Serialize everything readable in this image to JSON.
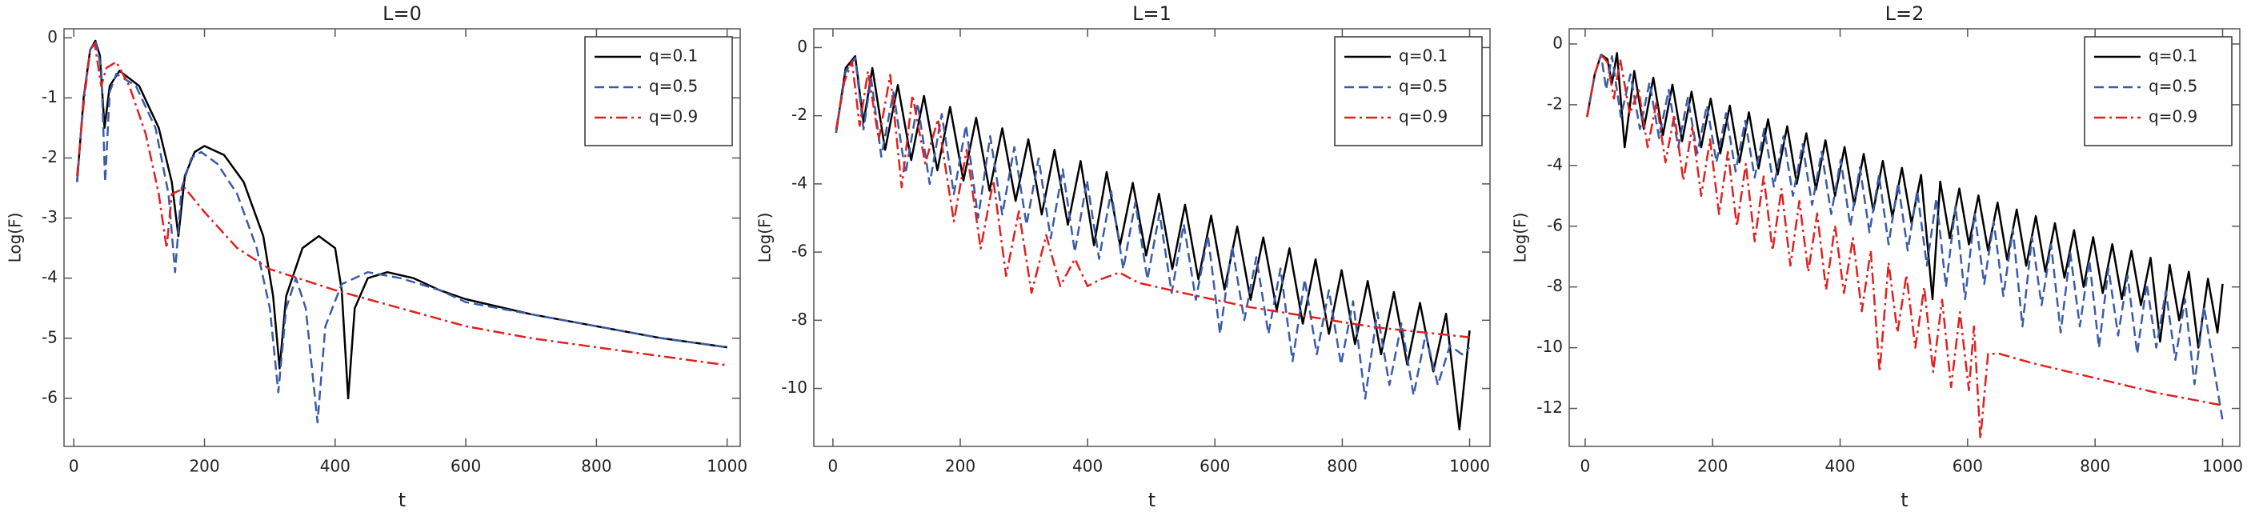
{
  "chart_data": [
    {
      "type": "line",
      "title": "L=0",
      "xlabel": "t",
      "ylabel": "Log(F)",
      "xlim": [
        -15,
        1020
      ],
      "ylim": [
        -6.8,
        0.15
      ],
      "xticks": [
        0,
        200,
        400,
        600,
        800,
        1000
      ],
      "yticks": [
        0,
        -1,
        -2,
        -3,
        -4,
        -5,
        -6
      ],
      "legend": "upper right",
      "series": [
        {
          "name": "q=0.1",
          "color": "#000000",
          "dash": "solid",
          "x": [
            5,
            15,
            25,
            33,
            40,
            47,
            55,
            70,
            100,
            130,
            150,
            160,
            170,
            185,
            200,
            230,
            260,
            290,
            305,
            315,
            325,
            350,
            375,
            400,
            410,
            420,
            430,
            450,
            480,
            520,
            560,
            600,
            700,
            800,
            900,
            1000
          ],
          "values": [
            -2.4,
            -1,
            -0.2,
            -0.05,
            -0.3,
            -1.5,
            -0.8,
            -0.55,
            -0.8,
            -1.5,
            -2.4,
            -3.3,
            -2.3,
            -1.9,
            -1.8,
            -1.95,
            -2.4,
            -3.3,
            -4.3,
            -5.5,
            -4.3,
            -3.5,
            -3.3,
            -3.5,
            -4.2,
            -6,
            -4.5,
            -4,
            -3.9,
            -4,
            -4.2,
            -4.35,
            -4.6,
            -4.8,
            -5,
            -5.15
          ]
        },
        {
          "name": "q=0.5",
          "color": "#3a5ca8",
          "dash": "dashed",
          "x": [
            5,
            15,
            25,
            33,
            42,
            48,
            55,
            65,
            95,
            125,
            145,
            155,
            165,
            180,
            195,
            220,
            250,
            280,
            300,
            313,
            325,
            340,
            355,
            373,
            385,
            410,
            450,
            500,
            560,
            600,
            700,
            800,
            900,
            1000
          ],
          "values": [
            -2.4,
            -1,
            -0.2,
            -0.05,
            -0.5,
            -2.4,
            -0.9,
            -0.6,
            -0.8,
            -1.5,
            -2.6,
            -3.9,
            -2.5,
            -2,
            -1.9,
            -2.1,
            -2.6,
            -3.5,
            -4.5,
            -5.9,
            -4.5,
            -4,
            -4.5,
            -6.4,
            -4.8,
            -4.1,
            -3.9,
            -4,
            -4.2,
            -4.4,
            -4.6,
            -4.8,
            -5,
            -5.15
          ]
        },
        {
          "name": "q=0.9",
          "color": "#e02020",
          "dash": "dashdot",
          "x": [
            5,
            15,
            25,
            32,
            42,
            50,
            65,
            85,
            110,
            130,
            142,
            150,
            170,
            200,
            250,
            300,
            400,
            500,
            600,
            700,
            800,
            900,
            1000
          ],
          "values": [
            -2.3,
            -1.1,
            -0.2,
            -0.1,
            -0.8,
            -0.5,
            -0.4,
            -0.8,
            -1.6,
            -2.6,
            -3.5,
            -2.6,
            -2.5,
            -2.9,
            -3.5,
            -3.85,
            -4.2,
            -4.5,
            -4.8,
            -5,
            -5.15,
            -5.3,
            -5.45
          ]
        }
      ]
    },
    {
      "type": "line",
      "title": "L=1",
      "xlabel": "t",
      "ylabel": "Log(F)",
      "xlim": [
        -30,
        1032
      ],
      "ylim": [
        -11.7,
        0.55
      ],
      "xticks": [
        0,
        200,
        400,
        600,
        800,
        1000
      ],
      "yticks": [
        0,
        -2,
        -4,
        -6,
        -8,
        -10
      ],
      "legend": "upper right",
      "series": [
        {
          "name": "q=0.1",
          "color": "#000000",
          "dash": "solid",
          "x": [
            5,
            20,
            35,
            48,
            62,
            82,
            102,
            123,
            143,
            164,
            184,
            205,
            225,
            246,
            266,
            287,
            307,
            328,
            348,
            369,
            389,
            410,
            430,
            451,
            471,
            492,
            512,
            533,
            553,
            574,
            594,
            615,
            635,
            656,
            676,
            697,
            717,
            738,
            758,
            779,
            799,
            820,
            840,
            861,
            881,
            902,
            922,
            943,
            963,
            984,
            1000
          ],
          "values": [
            -2.5,
            -0.6,
            -0.25,
            -2.2,
            -0.6,
            -3,
            -1.1,
            -3.3,
            -1.42,
            -3.6,
            -1.74,
            -3.9,
            -2.06,
            -4.2,
            -2.37,
            -4.5,
            -2.69,
            -4.9,
            -3,
            -5.2,
            -3.33,
            -5.8,
            -3.65,
            -5.8,
            -3.97,
            -6.1,
            -4.29,
            -6.5,
            -4.61,
            -6.8,
            -4.93,
            -7.1,
            -5.25,
            -7.4,
            -5.57,
            -7.7,
            -5.89,
            -8.1,
            -6.21,
            -8.4,
            -6.53,
            -8.7,
            -6.85,
            -9,
            -7.17,
            -9.3,
            -7.49,
            -9.5,
            -7.81,
            -11.2,
            -8.3
          ]
        },
        {
          "name": "q=0.5",
          "color": "#3a5ca8",
          "dash": "dashed",
          "x": [
            5,
            20,
            35,
            48,
            60,
            76,
            95,
            114,
            133,
            152,
            171,
            190,
            209,
            228,
            247,
            266,
            285,
            304,
            323,
            342,
            361,
            380,
            399,
            418,
            437,
            456,
            475,
            494,
            513,
            532,
            551,
            570,
            589,
            608,
            627,
            646,
            665,
            684,
            703,
            722,
            741,
            760,
            779,
            798,
            817,
            836,
            855,
            874,
            893,
            912,
            931,
            950,
            969,
            988,
            1000
          ],
          "values": [
            -2.5,
            -0.7,
            -0.3,
            -2.4,
            -0.9,
            -3.2,
            -1.31,
            -3.7,
            -1.63,
            -4,
            -1.95,
            -4.3,
            -2.28,
            -5,
            -2.6,
            -4.9,
            -2.92,
            -5.2,
            -3.25,
            -5.6,
            -3.57,
            -6,
            -3.89,
            -6.2,
            -4.21,
            -6.5,
            -4.54,
            -6.8,
            -4.86,
            -7.2,
            -5.18,
            -7.4,
            -5.51,
            -8.4,
            -5.83,
            -8,
            -6.15,
            -8.4,
            -6.48,
            -9.2,
            -6.8,
            -9,
            -7.12,
            -9.3,
            -7.44,
            -10.3,
            -7.77,
            -9.9,
            -8.09,
            -10.2,
            -8.41,
            -9.9,
            -8.74,
            -9,
            -8.8
          ]
        },
        {
          "name": "q=0.9",
          "color": "#e02020",
          "dash": "dashdot",
          "x": [
            5,
            18,
            30,
            42,
            55,
            72,
            90,
            108,
            125,
            145,
            165,
            190,
            210,
            232,
            252,
            272,
            292,
            312,
            335,
            357,
            380,
            400,
            420,
            450,
            480,
            550,
            650,
            750,
            850,
            950,
            1000
          ],
          "values": [
            -2.4,
            -1,
            -0.4,
            -2.3,
            -0.7,
            -2.7,
            -0.8,
            -4.1,
            -1.4,
            -3.4,
            -2.1,
            -5.1,
            -3,
            -5.9,
            -3.9,
            -6.7,
            -4.8,
            -7.2,
            -5.5,
            -7,
            -6.2,
            -7,
            -6.8,
            -6.6,
            -6.9,
            -7.2,
            -7.6,
            -7.9,
            -8.2,
            -8.4,
            -8.5
          ]
        }
      ]
    },
    {
      "type": "line",
      "title": "L=2",
      "xlabel": "t",
      "ylabel": "Log(F)",
      "xlim": [
        -25,
        1027
      ],
      "ylim": [
        -13.25,
        0.5
      ],
      "xticks": [
        0,
        200,
        400,
        600,
        800,
        1000
      ],
      "yticks": [
        0,
        -2,
        -4,
        -6,
        -8,
        -10,
        -12
      ],
      "legend": "upper right",
      "series": [
        {
          "name": "q=0.1",
          "color": "#000000",
          "dash": "solid",
          "x": [
            3,
            15,
            25,
            35,
            42,
            50,
            62,
            77,
            92,
            107,
            122,
            137,
            152,
            167,
            182,
            197,
            212,
            227,
            242,
            257,
            272,
            287,
            302,
            317,
            332,
            347,
            362,
            377,
            392,
            407,
            422,
            437,
            452,
            467,
            482,
            497,
            512,
            527,
            545,
            557,
            572,
            587,
            602,
            617,
            632,
            647,
            662,
            677,
            692,
            707,
            722,
            737,
            752,
            767,
            782,
            797,
            812,
            827,
            842,
            857,
            872,
            887,
            902,
            917,
            932,
            947,
            962,
            977,
            992,
            1000
          ],
          "values": [
            -2.4,
            -1,
            -0.35,
            -0.5,
            -1.3,
            -0.3,
            -3.4,
            -0.89,
            -2.8,
            -1.11,
            -3,
            -1.34,
            -3.2,
            -1.57,
            -3.4,
            -1.8,
            -3.6,
            -2.03,
            -3.9,
            -2.25,
            -4.1,
            -2.48,
            -4.3,
            -2.71,
            -4.6,
            -2.94,
            -4.8,
            -3.17,
            -5,
            -3.39,
            -5.3,
            -3.62,
            -5.5,
            -3.85,
            -5.7,
            -4.08,
            -5.9,
            -4.31,
            -8.4,
            -4.53,
            -6.4,
            -4.76,
            -6.6,
            -4.99,
            -6.8,
            -5.22,
            -7.1,
            -5.45,
            -7.3,
            -5.67,
            -7.5,
            -5.9,
            -7.7,
            -6.13,
            -8,
            -6.36,
            -8.2,
            -6.59,
            -8.4,
            -6.81,
            -8.6,
            -7.04,
            -9.8,
            -7.27,
            -9.1,
            -7.5,
            -10,
            -7.73,
            -9.5,
            -7.9
          ]
        },
        {
          "name": "q=0.5",
          "color": "#3a5ca8",
          "dash": "dashed",
          "x": [
            3,
            15,
            25,
            33,
            42,
            56,
            71,
            86,
            101,
            116,
            131,
            146,
            161,
            176,
            191,
            206,
            221,
            236,
            251,
            266,
            281,
            296,
            311,
            326,
            341,
            356,
            371,
            386,
            401,
            416,
            431,
            446,
            461,
            476,
            491,
            506,
            521,
            536,
            551,
            566,
            581,
            596,
            611,
            626,
            641,
            656,
            671,
            686,
            701,
            716,
            731,
            746,
            761,
            776,
            791,
            806,
            821,
            836,
            851,
            866,
            881,
            896,
            911,
            926,
            941,
            956,
            971,
            986,
            1000
          ],
          "values": [
            -2.4,
            -1,
            -0.35,
            -1.5,
            -0.4,
            -2.4,
            -1,
            -2.8,
            -1.26,
            -3.1,
            -1.51,
            -3.4,
            -1.77,
            -3.6,
            -2.02,
            -3.9,
            -2.28,
            -4.2,
            -2.53,
            -4.4,
            -2.79,
            -4.7,
            -3.04,
            -5,
            -3.3,
            -5.3,
            -3.55,
            -5.6,
            -3.81,
            -6,
            -4.06,
            -6.2,
            -4.32,
            -6.6,
            -4.57,
            -6.8,
            -4.83,
            -7.3,
            -5.08,
            -8,
            -5.34,
            -8.4,
            -5.59,
            -7.9,
            -5.85,
            -8.3,
            -6.1,
            -9.3,
            -6.36,
            -8.6,
            -6.61,
            -9.5,
            -6.87,
            -9.3,
            -7.12,
            -10,
            -7.38,
            -9.6,
            -7.63,
            -10.2,
            -7.89,
            -10,
            -8.14,
            -10.4,
            -8.4,
            -11.2,
            -8.65,
            -10.6,
            -12.4
          ]
        },
        {
          "name": "q=0.9",
          "color": "#e02020",
          "dash": "dashdot",
          "x": [
            3,
            15,
            25,
            35,
            45,
            55,
            70,
            84,
            98,
            112,
            126,
            140,
            154,
            168,
            182,
            196,
            210,
            224,
            238,
            252,
            266,
            280,
            294,
            308,
            322,
            336,
            350,
            364,
            378,
            392,
            406,
            420,
            434,
            448,
            462,
            476,
            490,
            504,
            518,
            532,
            546,
            560,
            574,
            588,
            602,
            610,
            620,
            632,
            650,
            700,
            800,
            900,
            1000
          ],
          "values": [
            -2.4,
            -1,
            -0.35,
            -0.6,
            -1.8,
            -0.5,
            -2.3,
            -1.52,
            -3.4,
            -1.92,
            -3.9,
            -2.33,
            -4.5,
            -2.74,
            -5,
            -3.14,
            -5.6,
            -3.55,
            -6,
            -3.95,
            -6.5,
            -4.36,
            -6.8,
            -4.77,
            -7.3,
            -5.17,
            -7.5,
            -5.58,
            -8.1,
            -5.98,
            -8.2,
            -6.39,
            -8.8,
            -6.8,
            -10.8,
            -7.2,
            -9.5,
            -7.61,
            -10,
            -8.01,
            -10.8,
            -8.42,
            -11.3,
            -8.83,
            -11.4,
            -9.3,
            -13,
            -10.2,
            -10.2,
            -10.5,
            -11,
            -11.5,
            -11.9
          ]
        }
      ]
    }
  ]
}
